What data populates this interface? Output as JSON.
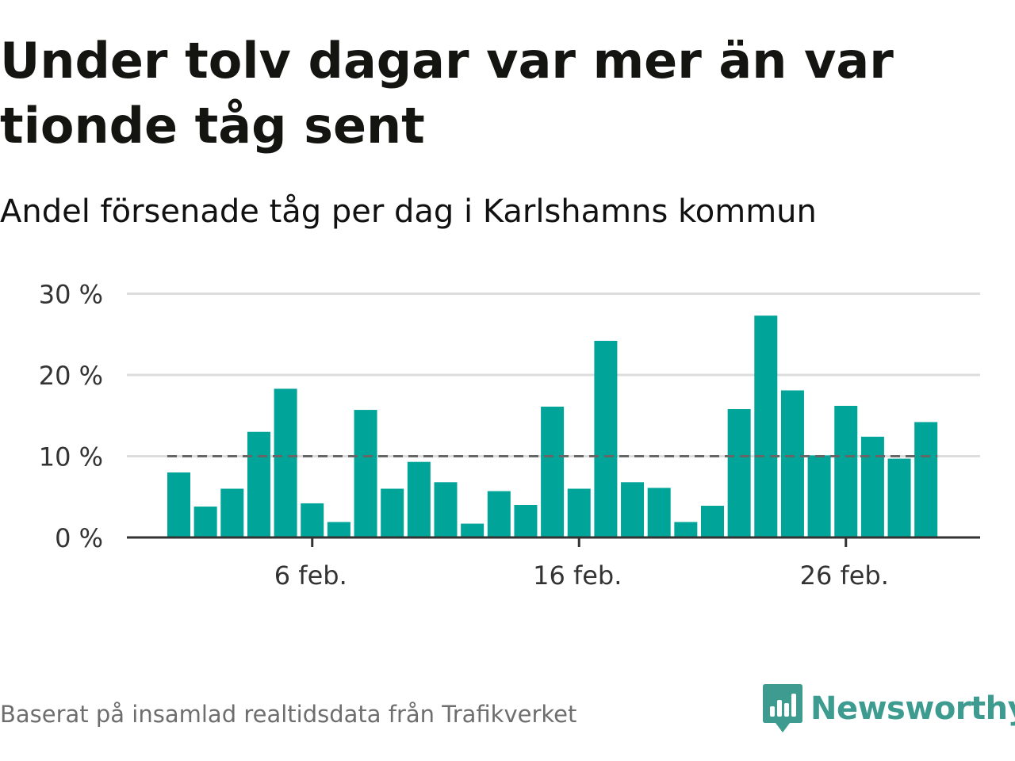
{
  "title": "Under tolv dagar var mer än var tionde tåg sent",
  "subtitle": "Andel försenade tåg per dag i Karlshamns kommun",
  "source": "Baserat på insamlad realtidsdata från Trafikverket",
  "brand": {
    "name": "Newsworthy",
    "color": "#3d9b90",
    "icon": "newsworthy-logo-icon"
  },
  "colors": {
    "bar": "#00a499",
    "reference_line": "#666666",
    "grid": "#dddddd",
    "axis": "#333333"
  },
  "chart_data": {
    "type": "bar",
    "title": "Under tolv dagar var mer än var tionde tåg sent",
    "subtitle": "Andel försenade tåg per dag i Karlshamns kommun",
    "xlabel": "",
    "ylabel": "",
    "x": [
      1,
      2,
      3,
      4,
      5,
      6,
      7,
      8,
      9,
      10,
      11,
      12,
      13,
      14,
      15,
      16,
      17,
      18,
      19,
      20,
      21,
      22,
      23,
      24,
      25,
      26,
      27,
      28,
      29
    ],
    "values": [
      8,
      3.8,
      6,
      13,
      18.3,
      4.2,
      1.9,
      15.7,
      6,
      9.3,
      6.8,
      1.7,
      5.7,
      4,
      16.1,
      6,
      24.2,
      6.8,
      6.1,
      1.9,
      3.9,
      15.8,
      27.3,
      18.1,
      10.1,
      16.2,
      12.4,
      9.7,
      14.2
    ],
    "ylim": [
      0,
      30
    ],
    "y_ticks": [
      0,
      10,
      20,
      30
    ],
    "y_tick_labels": [
      "0 %",
      "10 %",
      "20 %",
      "30 %"
    ],
    "x_ticks": [
      6,
      16,
      26
    ],
    "x_tick_labels": [
      "6 feb.",
      "16 feb.",
      "26 feb."
    ],
    "reference_line": {
      "value": 10,
      "style": "dashed"
    },
    "grid": true,
    "legend": "none"
  }
}
